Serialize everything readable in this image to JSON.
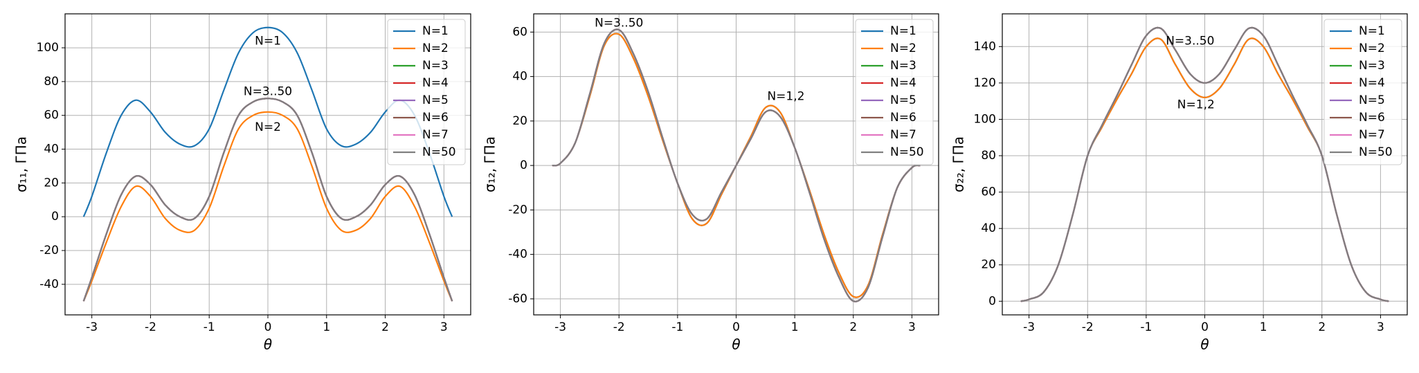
{
  "chart_data": [
    {
      "type": "line",
      "xlabel": "θ",
      "ylabel": "σ₁₁, ГПа",
      "x": [
        -3.14,
        -3.0,
        -2.75,
        -2.5,
        -2.25,
        -2.0,
        -1.75,
        -1.5,
        -1.25,
        -1.0,
        -0.75,
        -0.5,
        -0.25,
        0,
        0.25,
        0.5,
        0.75,
        1.0,
        1.25,
        1.5,
        1.75,
        2.0,
        2.25,
        2.5,
        2.75,
        3.0,
        3.14
      ],
      "xlim": [
        -3.456,
        3.456
      ],
      "xticks": [
        -3,
        -2,
        -1,
        0,
        1,
        2,
        3
      ],
      "ylim": [
        -58.1,
        120.1
      ],
      "yticks": [
        -40,
        -20,
        0,
        20,
        40,
        60,
        80,
        100
      ],
      "grid": true,
      "legend": "upper-right",
      "series": [
        {
          "name": "N=1",
          "color": "#1f77b4",
          "values": [
            0,
            12,
            38,
            60,
            69,
            62,
            50,
            43,
            42,
            52,
            75,
            97,
            109,
            112,
            109,
            97,
            75,
            52,
            42,
            43,
            50,
            62,
            69,
            60,
            38,
            12,
            0
          ]
        },
        {
          "name": "N=2",
          "color": "#ff7f0e",
          "values": [
            -50,
            -38,
            -15,
            6,
            18,
            12,
            -1,
            -8,
            -8,
            5,
            30,
            52,
            60,
            62,
            60,
            52,
            30,
            5,
            -8,
            -8,
            -1,
            12,
            18,
            6,
            -15,
            -38,
            -50
          ]
        },
        {
          "name": "N=3",
          "color": "#2ca02c",
          "values": [
            -50,
            -36,
            -10,
            13,
            24,
            19,
            7,
            0,
            -1,
            12,
            38,
            60,
            68,
            70,
            68,
            60,
            38,
            12,
            -1,
            0,
            7,
            19,
            24,
            13,
            -10,
            -36,
            -50
          ]
        },
        {
          "name": "N=4",
          "color": "#d62728",
          "values": [
            -50,
            -36,
            -10,
            13,
            24,
            19,
            7,
            0,
            -1,
            12,
            38,
            60,
            68,
            70,
            68,
            60,
            38,
            12,
            -1,
            0,
            7,
            19,
            24,
            13,
            -10,
            -36,
            -50
          ]
        },
        {
          "name": "N=5",
          "color": "#9467bd",
          "values": [
            -50,
            -36,
            -10,
            13,
            24,
            19,
            7,
            0,
            -1,
            12,
            38,
            60,
            68,
            70,
            68,
            60,
            38,
            12,
            -1,
            0,
            7,
            19,
            24,
            13,
            -10,
            -36,
            -50
          ]
        },
        {
          "name": "N=6",
          "color": "#8c564b",
          "values": [
            -50,
            -36,
            -10,
            13,
            24,
            19,
            7,
            0,
            -1,
            12,
            38,
            60,
            68,
            70,
            68,
            60,
            38,
            12,
            -1,
            0,
            7,
            19,
            24,
            13,
            -10,
            -36,
            -50
          ]
        },
        {
          "name": "N=7",
          "color": "#e377c2",
          "values": [
            -50,
            -36,
            -10,
            13,
            24,
            19,
            7,
            0,
            -1,
            12,
            38,
            60,
            68,
            70,
            68,
            60,
            38,
            12,
            -1,
            0,
            7,
            19,
            24,
            13,
            -10,
            -36,
            -50
          ]
        },
        {
          "name": "N=50",
          "color": "#7f7f7f",
          "values": [
            -50,
            -36,
            -10,
            13,
            24,
            19,
            7,
            0,
            -1,
            12,
            38,
            60,
            68,
            70,
            68,
            60,
            38,
            12,
            -1,
            0,
            7,
            19,
            24,
            13,
            -10,
            -36,
            -50
          ]
        }
      ],
      "annotations": [
        {
          "text": "N=1",
          "x": 0,
          "y": 104
        },
        {
          "text": "N=3..50",
          "x": 0,
          "y": 74
        },
        {
          "text": "N=2",
          "x": 0,
          "y": 53
        }
      ]
    },
    {
      "type": "line",
      "xlabel": "θ",
      "ylabel": "σ₁₂, ГПа",
      "x": [
        -3.14,
        -3.0,
        -2.75,
        -2.5,
        -2.25,
        -2.0,
        -1.75,
        -1.5,
        -1.25,
        -1.0,
        -0.75,
        -0.5,
        -0.25,
        0,
        0.25,
        0.5,
        0.75,
        1.0,
        1.25,
        1.5,
        1.75,
        2.0,
        2.25,
        2.5,
        2.75,
        3.0,
        3.14
      ],
      "xlim": [
        -3.456,
        3.456
      ],
      "xticks": [
        -3,
        -2,
        -1,
        0,
        1,
        2,
        3
      ],
      "ylim": [
        -67.2,
        68.2
      ],
      "yticks": [
        -60,
        -40,
        -20,
        0,
        20,
        40,
        60
      ],
      "grid": true,
      "legend": "upper-right",
      "series": [
        {
          "name": "N=1",
          "color": "#1f77b4",
          "values": [
            0,
            1,
            10,
            31,
            54,
            59,
            48,
            31,
            11,
            -8,
            -24,
            -26,
            -13,
            0,
            13,
            26,
            24,
            8,
            -11,
            -31,
            -48,
            -59,
            -54,
            -31,
            -10,
            -1,
            0
          ]
        },
        {
          "name": "N=2",
          "color": "#ff7f0e",
          "values": [
            0,
            1,
            10,
            31,
            54,
            59,
            48,
            31,
            11,
            -8,
            -24,
            -26,
            -13,
            0,
            13,
            26,
            24,
            8,
            -11,
            -31,
            -48,
            -59,
            -54,
            -31,
            -10,
            -1,
            0
          ]
        },
        {
          "name": "N=3",
          "color": "#2ca02c",
          "values": [
            0,
            1,
            10,
            32,
            55,
            61,
            50,
            33,
            12,
            -8,
            -22,
            -24,
            -12,
            0,
            12,
            24,
            22,
            8,
            -12,
            -33,
            -50,
            -61,
            -55,
            -32,
            -10,
            -1,
            0
          ]
        },
        {
          "name": "N=4",
          "color": "#d62728",
          "values": [
            0,
            1,
            10,
            32,
            55,
            61,
            50,
            33,
            12,
            -8,
            -22,
            -24,
            -12,
            0,
            12,
            24,
            22,
            8,
            -12,
            -33,
            -50,
            -61,
            -55,
            -32,
            -10,
            -1,
            0
          ]
        },
        {
          "name": "N=5",
          "color": "#9467bd",
          "values": [
            0,
            1,
            10,
            32,
            55,
            61,
            50,
            33,
            12,
            -8,
            -22,
            -24,
            -12,
            0,
            12,
            24,
            22,
            8,
            -12,
            -33,
            -50,
            -61,
            -55,
            -32,
            -10,
            -1,
            0
          ]
        },
        {
          "name": "N=6",
          "color": "#8c564b",
          "values": [
            0,
            1,
            10,
            32,
            55,
            61,
            50,
            33,
            12,
            -8,
            -22,
            -24,
            -12,
            0,
            12,
            24,
            22,
            8,
            -12,
            -33,
            -50,
            -61,
            -55,
            -32,
            -10,
            -1,
            0
          ]
        },
        {
          "name": "N=7",
          "color": "#e377c2",
          "values": [
            0,
            1,
            10,
            32,
            55,
            61,
            50,
            33,
            12,
            -8,
            -22,
            -24,
            -12,
            0,
            12,
            24,
            22,
            8,
            -12,
            -33,
            -50,
            -61,
            -55,
            -32,
            -10,
            -1,
            0
          ]
        },
        {
          "name": "N=50",
          "color": "#7f7f7f",
          "values": [
            0,
            1,
            10,
            32,
            55,
            61,
            50,
            33,
            12,
            -8,
            -22,
            -24,
            -12,
            0,
            12,
            24,
            22,
            8,
            -12,
            -33,
            -50,
            -61,
            -55,
            -32,
            -10,
            -1,
            0
          ]
        }
      ],
      "annotations": [
        {
          "text": "N=3..50",
          "x": -2.0,
          "y": 64
        },
        {
          "text": "N=1,2",
          "x": 0.85,
          "y": 31
        }
      ]
    },
    {
      "type": "line",
      "xlabel": "θ",
      "ylabel": "σ₂₂, ГПа",
      "x": [
        -3.14,
        -3.0,
        -2.75,
        -2.5,
        -2.25,
        -2.0,
        -1.75,
        -1.5,
        -1.25,
        -1.0,
        -0.75,
        -0.5,
        -0.25,
        0,
        0.25,
        0.5,
        0.75,
        1.0,
        1.25,
        1.5,
        1.75,
        2.0,
        2.25,
        2.5,
        2.75,
        3.0,
        3.14
      ],
      "xlim": [
        -3.456,
        3.456
      ],
      "xticks": [
        -3,
        -2,
        -1,
        0,
        1,
        2,
        3
      ],
      "ylim": [
        -7.5,
        158
      ],
      "yticks": [
        0,
        20,
        40,
        60,
        80,
        100,
        120,
        140
      ],
      "grid": true,
      "legend": "upper-right",
      "series": [
        {
          "name": "N=1",
          "color": "#1f77b4",
          "values": [
            0,
            1,
            5,
            20,
            48,
            80,
            96,
            111,
            125,
            140,
            144,
            130,
            117,
            112,
            117,
            130,
            144,
            140,
            125,
            111,
            96,
            80,
            48,
            20,
            5,
            1,
            0
          ]
        },
        {
          "name": "N=2",
          "color": "#ff7f0e",
          "values": [
            0,
            1,
            5,
            20,
            48,
            80,
            96,
            111,
            125,
            140,
            144,
            130,
            117,
            112,
            117,
            130,
            144,
            140,
            125,
            111,
            96,
            80,
            48,
            20,
            5,
            1,
            0
          ]
        },
        {
          "name": "N=3",
          "color": "#2ca02c",
          "values": [
            0,
            1,
            5,
            20,
            48,
            80,
            97,
            113,
            130,
            146,
            150,
            138,
            125,
            120,
            125,
            138,
            150,
            146,
            130,
            113,
            97,
            80,
            48,
            20,
            5,
            1,
            0
          ]
        },
        {
          "name": "N=4",
          "color": "#d62728",
          "values": [
            0,
            1,
            5,
            20,
            48,
            80,
            97,
            113,
            130,
            146,
            150,
            138,
            125,
            120,
            125,
            138,
            150,
            146,
            130,
            113,
            97,
            80,
            48,
            20,
            5,
            1,
            0
          ]
        },
        {
          "name": "N=5",
          "color": "#9467bd",
          "values": [
            0,
            1,
            5,
            20,
            48,
            80,
            97,
            113,
            130,
            146,
            150,
            138,
            125,
            120,
            125,
            138,
            150,
            146,
            130,
            113,
            97,
            80,
            48,
            20,
            5,
            1,
            0
          ]
        },
        {
          "name": "N=6",
          "color": "#8c564b",
          "values": [
            0,
            1,
            5,
            20,
            48,
            80,
            97,
            113,
            130,
            146,
            150,
            138,
            125,
            120,
            125,
            138,
            150,
            146,
            130,
            113,
            97,
            80,
            48,
            20,
            5,
            1,
            0
          ]
        },
        {
          "name": "N=7",
          "color": "#e377c2",
          "values": [
            0,
            1,
            5,
            20,
            48,
            80,
            97,
            113,
            130,
            146,
            150,
            138,
            125,
            120,
            125,
            138,
            150,
            146,
            130,
            113,
            97,
            80,
            48,
            20,
            5,
            1,
            0
          ]
        },
        {
          "name": "N=50",
          "color": "#7f7f7f",
          "values": [
            0,
            1,
            5,
            20,
            48,
            80,
            97,
            113,
            130,
            146,
            150,
            138,
            125,
            120,
            125,
            138,
            150,
            146,
            130,
            113,
            97,
            80,
            48,
            20,
            5,
            1,
            0
          ]
        }
      ],
      "annotations": [
        {
          "text": "N=3..50",
          "x": -0.25,
          "y": 143
        },
        {
          "text": "N=1,2",
          "x": -0.15,
          "y": 108
        }
      ]
    }
  ]
}
